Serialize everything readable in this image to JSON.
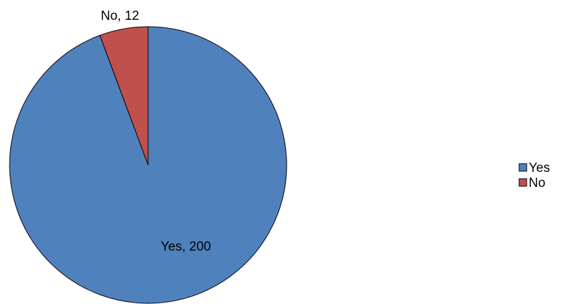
{
  "chart_data": {
    "type": "pie",
    "categories": [
      "Yes",
      "No"
    ],
    "values": [
      200,
      12
    ],
    "colors": [
      "#4F81BD",
      "#C0504D"
    ],
    "data_labels": [
      "Yes, 200",
      "No, 12"
    ],
    "legend": {
      "entries": [
        "Yes",
        "No"
      ],
      "placement": "right"
    },
    "start_angle": "12 o'clock",
    "direction": "clockwise"
  }
}
